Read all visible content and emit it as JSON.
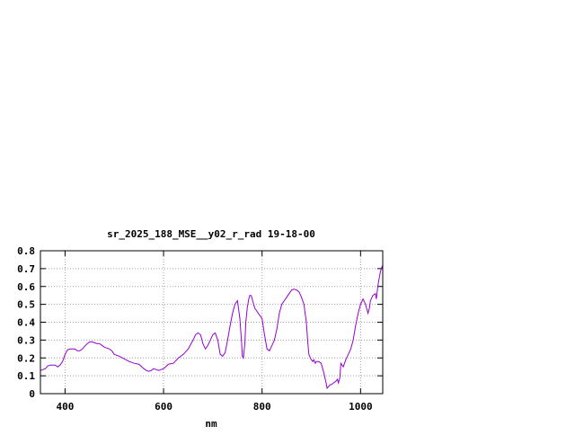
{
  "chart_data": {
    "type": "line",
    "title": "sr_2025_188_MSE__y02_r_rad 19-18-00",
    "xlabel": "nm",
    "ylabel": "",
    "xlim": [
      350,
      1045
    ],
    "ylim": [
      0,
      0.8
    ],
    "x_ticks": [
      400,
      600,
      800,
      1000
    ],
    "y_ticks": [
      0,
      0.1,
      0.2,
      0.3,
      0.4,
      0.5,
      0.6,
      0.7,
      0.8
    ],
    "x_tick_labels": [
      "400",
      "600",
      "800",
      "1000"
    ],
    "y_tick_labels": [
      "0",
      "0.1",
      "0.2",
      "0.3",
      "0.4",
      "0.5",
      "0.6",
      "0.7",
      "0.8"
    ],
    "grid": true,
    "series": [
      {
        "color": "#9400d3",
        "x": [
          350,
          360,
          365,
          370,
          375,
          380,
          385,
          390,
          395,
          400,
          405,
          410,
          415,
          420,
          425,
          430,
          435,
          440,
          445,
          450,
          455,
          460,
          465,
          470,
          475,
          480,
          485,
          490,
          495,
          500,
          510,
          520,
          530,
          540,
          550,
          560,
          565,
          570,
          575,
          580,
          585,
          590,
          595,
          600,
          610,
          620,
          630,
          640,
          650,
          660,
          665,
          670,
          675,
          680,
          685,
          690,
          695,
          700,
          705,
          710,
          715,
          720,
          725,
          730,
          735,
          740,
          745,
          750,
          752,
          755,
          758,
          760,
          762,
          765,
          767,
          770,
          773,
          775,
          778,
          780,
          785,
          790,
          795,
          800,
          805,
          810,
          815,
          820,
          825,
          830,
          835,
          840,
          845,
          850,
          855,
          860,
          865,
          870,
          875,
          880,
          885,
          890,
          893,
          895,
          898,
          900,
          903,
          905,
          908,
          910,
          915,
          920,
          925,
          930,
          932,
          935,
          938,
          940,
          945,
          950,
          953,
          955,
          958,
          960,
          965,
          970,
          975,
          980,
          985,
          990,
          995,
          1000,
          1005,
          1010,
          1013,
          1015,
          1018,
          1020,
          1025,
          1030,
          1032,
          1035,
          1038,
          1040,
          1042,
          1045
        ],
        "values": [
          0.13,
          0.14,
          0.155,
          0.16,
          0.16,
          0.16,
          0.15,
          0.16,
          0.18,
          0.22,
          0.245,
          0.25,
          0.25,
          0.25,
          0.24,
          0.24,
          0.25,
          0.265,
          0.28,
          0.29,
          0.29,
          0.285,
          0.28,
          0.28,
          0.27,
          0.26,
          0.255,
          0.25,
          0.24,
          0.22,
          0.21,
          0.195,
          0.18,
          0.17,
          0.165,
          0.14,
          0.13,
          0.125,
          0.13,
          0.14,
          0.135,
          0.13,
          0.135,
          0.14,
          0.165,
          0.17,
          0.2,
          0.22,
          0.25,
          0.3,
          0.33,
          0.34,
          0.33,
          0.28,
          0.25,
          0.27,
          0.3,
          0.33,
          0.34,
          0.3,
          0.22,
          0.21,
          0.23,
          0.3,
          0.38,
          0.45,
          0.5,
          0.52,
          0.48,
          0.42,
          0.3,
          0.21,
          0.2,
          0.28,
          0.4,
          0.48,
          0.53,
          0.55,
          0.55,
          0.53,
          0.48,
          0.46,
          0.44,
          0.42,
          0.33,
          0.25,
          0.24,
          0.27,
          0.3,
          0.36,
          0.45,
          0.5,
          0.52,
          0.54,
          0.56,
          0.58,
          0.585,
          0.58,
          0.57,
          0.54,
          0.5,
          0.4,
          0.28,
          0.22,
          0.2,
          0.19,
          0.18,
          0.19,
          0.17,
          0.18,
          0.18,
          0.17,
          0.12,
          0.06,
          0.03,
          0.04,
          0.05,
          0.05,
          0.06,
          0.07,
          0.08,
          0.06,
          0.09,
          0.17,
          0.15,
          0.19,
          0.22,
          0.25,
          0.3,
          0.38,
          0.45,
          0.5,
          0.53,
          0.5,
          0.47,
          0.45,
          0.48,
          0.52,
          0.55,
          0.56,
          0.53,
          0.6,
          0.65,
          0.68,
          0.7,
          0.72
        ]
      }
    ]
  }
}
